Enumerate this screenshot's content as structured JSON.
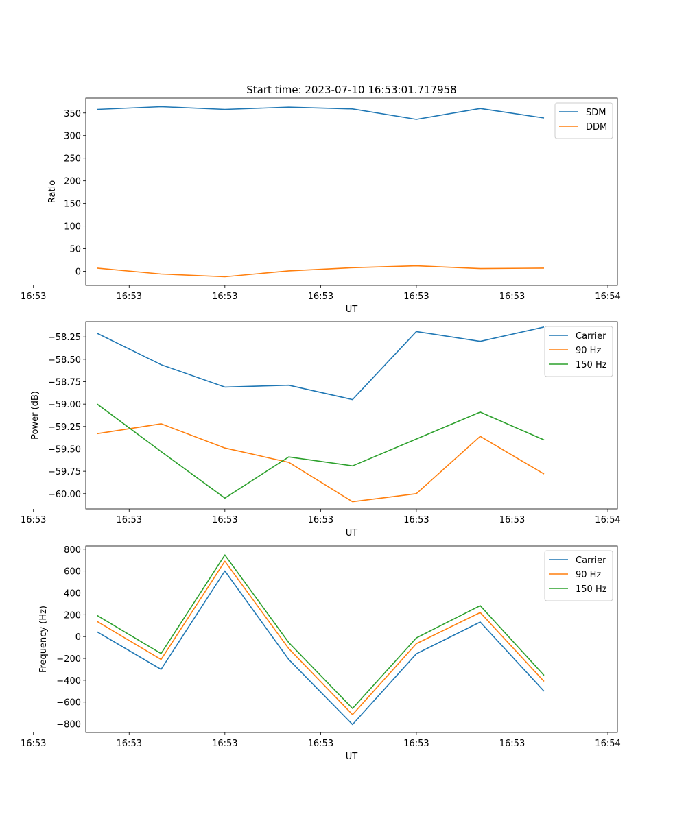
{
  "figure": {
    "title": "Start time: 2023-07-10 16:53:01.717958"
  },
  "chart_data": [
    {
      "type": "line",
      "title": "Start time: 2023-07-10 16:53:01.717958",
      "xlabel": "UT",
      "ylabel": "Ratio",
      "x": [
        1,
        2,
        3,
        4,
        5,
        6,
        7,
        8
      ],
      "xlim": [
        0.82,
        9.15
      ],
      "xticks": [
        0,
        1.5,
        3,
        4.5,
        6,
        7.5,
        9
      ],
      "xtick_labels": [
        "16:53",
        "16:53",
        "16:53",
        "16:53",
        "16:53",
        "16:53",
        "16:54"
      ],
      "ylim": [
        -31,
        383
      ],
      "yticks": [
        0,
        50,
        100,
        150,
        200,
        250,
        300,
        350
      ],
      "ytick_labels": [
        "0",
        "50",
        "100",
        "150",
        "200",
        "250",
        "300",
        "350"
      ],
      "legend_position": "top-right",
      "series": [
        {
          "name": "SDM",
          "color": "#1f77b4",
          "values": [
            358,
            364,
            358,
            363,
            359,
            336,
            360,
            339
          ]
        },
        {
          "name": "DDM",
          "color": "#ff7f0e",
          "values": [
            7,
            -6,
            -12,
            1,
            8,
            12,
            6,
            7
          ]
        }
      ]
    },
    {
      "type": "line",
      "title": "",
      "xlabel": "UT",
      "ylabel": "Power (dB)",
      "x": [
        1,
        2,
        3,
        4,
        5,
        6,
        7,
        8
      ],
      "xlim": [
        0.82,
        9.15
      ],
      "xticks": [
        0,
        1.5,
        3,
        4.5,
        6,
        7.5,
        9
      ],
      "xtick_labels": [
        "16:53",
        "16:53",
        "16:53",
        "16:53",
        "16:53",
        "16:53",
        "16:54"
      ],
      "ylim": [
        -60.17,
        -58.08
      ],
      "yticks": [
        -60.0,
        -59.75,
        -59.5,
        -59.25,
        -59.0,
        -58.75,
        -58.5,
        -58.25
      ],
      "ytick_labels": [
        "−60.00",
        "−59.75",
        "−59.50",
        "−59.25",
        "−59.00",
        "−58.75",
        "−58.50",
        "−58.25"
      ],
      "legend_position": "top-right",
      "series": [
        {
          "name": "Carrier",
          "color": "#1f77b4",
          "values": [
            -58.21,
            -58.56,
            -58.81,
            -58.79,
            -58.95,
            -58.19,
            -58.3,
            -58.14
          ]
        },
        {
          "name": "90 Hz",
          "color": "#ff7f0e",
          "values": [
            -59.33,
            -59.22,
            -59.49,
            -59.65,
            -60.09,
            -60.0,
            -59.36,
            -59.78
          ]
        },
        {
          "name": "150 Hz",
          "color": "#2ca02c",
          "values": [
            -59.0,
            -59.53,
            -60.05,
            -59.59,
            -59.69,
            -59.39,
            -59.09,
            -59.4
          ]
        }
      ]
    },
    {
      "type": "line",
      "title": "",
      "xlabel": "UT",
      "ylabel": "Frequency (Hz)",
      "x": [
        1,
        2,
        3,
        4,
        5,
        6,
        7,
        8
      ],
      "xlim": [
        0.82,
        9.15
      ],
      "xticks": [
        0,
        1.5,
        3,
        4.5,
        6,
        7.5,
        9
      ],
      "xtick_labels": [
        "16:53",
        "16:53",
        "16:53",
        "16:53",
        "16:53",
        "16:53",
        "16:54"
      ],
      "ylim": [
        -878,
        830
      ],
      "yticks": [
        -800,
        -600,
        -400,
        -200,
        0,
        200,
        400,
        600,
        800
      ],
      "ytick_labels": [
        "−800",
        "−600",
        "−400",
        "−200",
        "0",
        "200",
        "400",
        "600",
        "800"
      ],
      "legend_position": "top-right",
      "series": [
        {
          "name": "Carrier",
          "color": "#1f77b4",
          "values": [
            43,
            -300,
            601,
            -210,
            -805,
            -158,
            133,
            -500
          ]
        },
        {
          "name": "90 Hz",
          "color": "#ff7f0e",
          "values": [
            138,
            -210,
            690,
            -110,
            -715,
            -65,
            220,
            -410
          ]
        },
        {
          "name": "150 Hz",
          "color": "#2ca02c",
          "values": [
            193,
            -155,
            747,
            -55,
            -658,
            -12,
            283,
            -355
          ]
        }
      ]
    }
  ]
}
